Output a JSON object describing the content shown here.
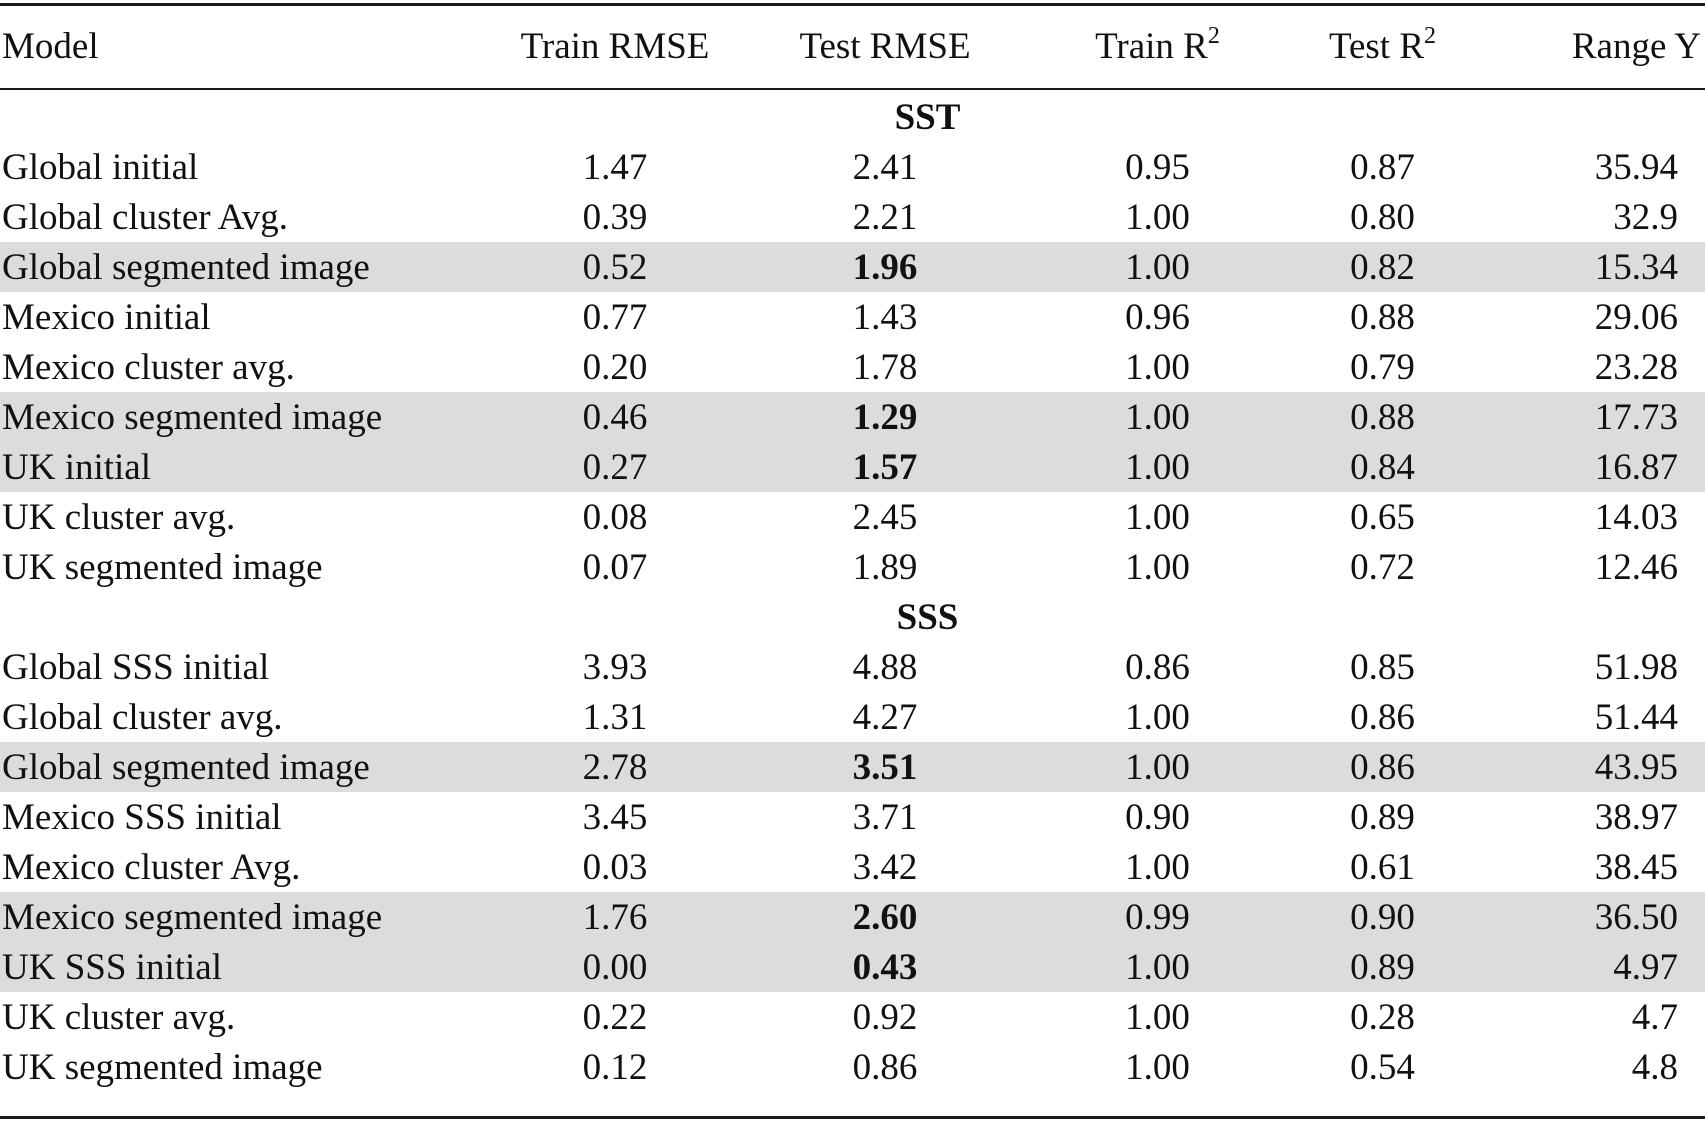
{
  "headers": {
    "model": "Model",
    "train_rmse": "Train RMSE",
    "test_rmse": "Test RMSE",
    "train_r2_base": "Train R",
    "train_r2_sup": "2",
    "test_r2_base": "Test R",
    "test_r2_sup": "2",
    "range_y": "Range Y"
  },
  "sections": [
    {
      "label": "SST",
      "rows": [
        {
          "model": "Global initial",
          "train_rmse": "1.47",
          "test_rmse": "2.41",
          "train_r2": "0.95",
          "test_r2": "0.87",
          "range_y": "35.94"
        },
        {
          "model": "Global cluster Avg.",
          "train_rmse": "0.39",
          "test_rmse": "2.21",
          "train_r2": "1.00",
          "test_r2": "0.80",
          "range_y": "32.9"
        },
        {
          "model": "Global segmented image",
          "train_rmse": "0.52",
          "test_rmse": "1.96",
          "train_r2": "1.00",
          "test_r2": "0.82",
          "range_y": "15.34"
        },
        {
          "model": "Mexico initial",
          "train_rmse": "0.77",
          "test_rmse": "1.43",
          "train_r2": "0.96",
          "test_r2": "0.88",
          "range_y": "29.06"
        },
        {
          "model": "Mexico cluster avg.",
          "train_rmse": "0.20",
          "test_rmse": "1.78",
          "train_r2": "1.00",
          "test_r2": "0.79",
          "range_y": "23.28"
        },
        {
          "model": "Mexico segmented image",
          "train_rmse": "0.46",
          "test_rmse": "1.29",
          "train_r2": "1.00",
          "test_r2": "0.88",
          "range_y": "17.73"
        },
        {
          "model": "UK initial",
          "train_rmse": "0.27",
          "test_rmse": "1.57",
          "train_r2": "1.00",
          "test_r2": "0.84",
          "range_y": "16.87"
        },
        {
          "model": "UK cluster avg.",
          "train_rmse": "0.08",
          "test_rmse": "2.45",
          "train_r2": "1.00",
          "test_r2": "0.65",
          "range_y": "14.03"
        },
        {
          "model": "UK segmented image",
          "train_rmse": "0.07",
          "test_rmse": "1.89",
          "train_r2": "1.00",
          "test_r2": "0.72",
          "range_y": "12.46"
        }
      ]
    },
    {
      "label": "SSS",
      "rows": [
        {
          "model": "Global SSS initial",
          "train_rmse": "3.93",
          "test_rmse": "4.88",
          "train_r2": "0.86",
          "test_r2": "0.85",
          "range_y": "51.98"
        },
        {
          "model": "Global cluster avg.",
          "train_rmse": "1.31",
          "test_rmse": "4.27",
          "train_r2": "1.00",
          "test_r2": "0.86",
          "range_y": "51.44"
        },
        {
          "model": "Global segmented image",
          "train_rmse": "2.78",
          "test_rmse": "3.51",
          "train_r2": "1.00",
          "test_r2": "0.86",
          "range_y": "43.95"
        },
        {
          "model": "Mexico SSS initial",
          "train_rmse": "3.45",
          "test_rmse": "3.71",
          "train_r2": "0.90",
          "test_r2": "0.89",
          "range_y": "38.97"
        },
        {
          "model": "Mexico cluster Avg.",
          "train_rmse": "0.03",
          "test_rmse": "3.42",
          "train_r2": "1.00",
          "test_r2": "0.61",
          "range_y": "38.45"
        },
        {
          "model": "Mexico segmented image",
          "train_rmse": "1.76",
          "test_rmse": "2.60",
          "train_r2": "0.99",
          "test_r2": "0.90",
          "range_y": "36.50"
        },
        {
          "model": "UK SSS initial",
          "train_rmse": "0.00",
          "test_rmse": "0.43",
          "train_r2": "1.00",
          "test_r2": "0.89",
          "range_y": "4.97"
        },
        {
          "model": "UK cluster avg.",
          "train_rmse": "0.22",
          "test_rmse": "0.92",
          "train_r2": "1.00",
          "test_r2": "0.28",
          "range_y": "4.7"
        },
        {
          "model": "UK segmented image",
          "train_rmse": "0.12",
          "test_rmse": "0.86",
          "train_r2": "1.00",
          "test_r2": "0.54",
          "range_y": "4.8"
        }
      ]
    }
  ],
  "highlight_color": "#dcdcdc"
}
